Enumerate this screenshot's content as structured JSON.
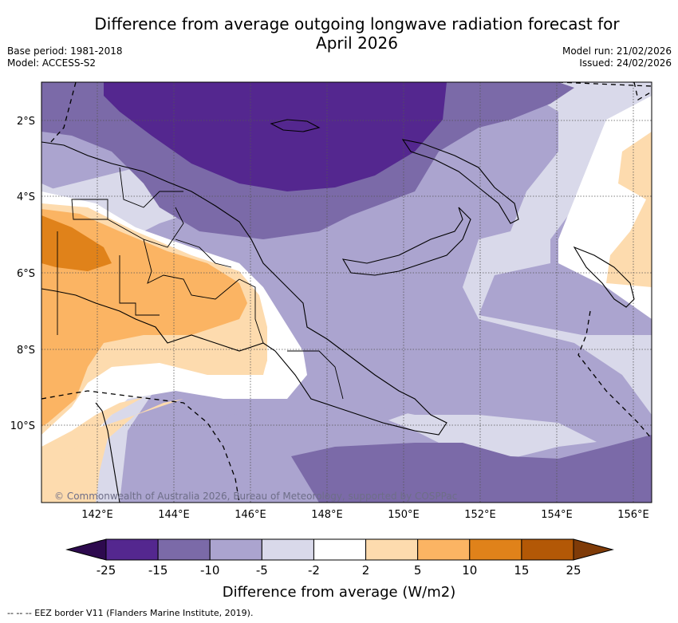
{
  "title_line1": "Difference from average outgoing longwave radiation forecast for",
  "title_line2": "April 2026",
  "base_period": "Base period: 1981-2018",
  "model": "Model: ACCESS-S2",
  "model_run": "Model run: 21/02/2026",
  "issued": "Issued: 24/02/2026",
  "copyright": "© Commonwealth of Australia 2026, Bureau of Meteorology, supported by COSPPac",
  "lat_labels": [
    "2°S",
    "4°S",
    "6°S",
    "8°S",
    "10°S"
  ],
  "lon_labels": [
    "142°E",
    "144°E",
    "146°E",
    "148°E",
    "150°E",
    "152°E",
    "154°E",
    "156°E"
  ],
  "colorbar": {
    "ticks": [
      "-25",
      "-15",
      "-10",
      "-5",
      "-2",
      "2",
      "5",
      "10",
      "15",
      "25"
    ],
    "colors": [
      "#54278f",
      "#7b6aa8",
      "#aba4cf",
      "#d9d9ea",
      "#ffffff",
      "#fddbae",
      "#fbb463",
      "#e0821a",
      "#b35806"
    ],
    "extend_low_color": "#2d0a4e",
    "extend_high_color": "#7f3b08",
    "label": "Difference from average (W/m2)"
  },
  "legend_note": "--  --  -- EEZ border V11 (Flanders Marine Institute, 2019)."
}
